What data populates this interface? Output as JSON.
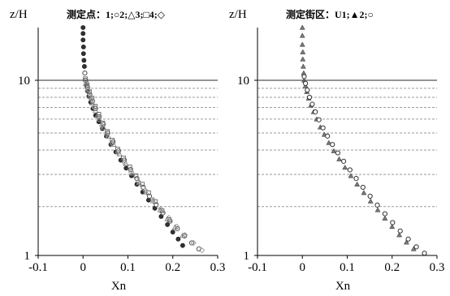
{
  "chart_data": [
    {
      "type": "scatter",
      "ylabel": "z/H",
      "xlabel": "Xn",
      "legend_text": "测定点：1;○2;△3;□4;◇",
      "y_scale": "log",
      "xlim": [
        -0.1,
        0.3
      ],
      "ylim": [
        1,
        20
      ],
      "xticks": [
        "-0.1",
        "0",
        "0.1",
        "0.2",
        "0.3"
      ],
      "yticks": [
        {
          "value": 10,
          "label": "10"
        },
        {
          "value": 1,
          "label": "1"
        }
      ],
      "grid_y": [
        1.9,
        2.9,
        4.0,
        5.0,
        6.0,
        7.0,
        8.0,
        9.0
      ],
      "series": [
        {
          "marker": "circle-filled",
          "color": "#333333",
          "points": [
            [
              0.0,
              20
            ],
            [
              0.0,
              18.5
            ],
            [
              0.0,
              17
            ],
            [
              0.001,
              15.5
            ],
            [
              0.001,
              14.2
            ],
            [
              0.002,
              13
            ],
            [
              0.003,
              12
            ],
            [
              0.004,
              11
            ],
            [
              0.005,
              10
            ],
            [
              0.008,
              9.3
            ],
            [
              0.01,
              8.7
            ],
            [
              0.013,
              8.1
            ],
            [
              0.017,
              7.5
            ],
            [
              0.022,
              6.9
            ],
            [
              0.028,
              6.3
            ],
            [
              0.035,
              5.8
            ],
            [
              0.043,
              5.3
            ],
            [
              0.052,
              4.8
            ],
            [
              0.062,
              4.3
            ],
            [
              0.073,
              3.9
            ],
            [
              0.084,
              3.5
            ],
            [
              0.096,
              3.15
            ],
            [
              0.108,
              2.85
            ],
            [
              0.12,
              2.55
            ],
            [
              0.133,
              2.3
            ],
            [
              0.146,
              2.07
            ],
            [
              0.16,
              1.86
            ],
            [
              0.174,
              1.67
            ],
            [
              0.188,
              1.5
            ],
            [
              0.2,
              1.36
            ],
            [
              0.212,
              1.24
            ],
            [
              0.222,
              1.14
            ]
          ]
        },
        {
          "marker": "circle-open",
          "color": "#555555",
          "points": [
            [
              0.004,
              11
            ],
            [
              0.006,
              10
            ],
            [
              0.01,
              9.1
            ],
            [
              0.015,
              8.3
            ],
            [
              0.021,
              7.6
            ],
            [
              0.028,
              6.9
            ],
            [
              0.036,
              6.2
            ],
            [
              0.045,
              5.6
            ],
            [
              0.055,
              5.0
            ],
            [
              0.067,
              4.45
            ],
            [
              0.079,
              3.95
            ],
            [
              0.092,
              3.5
            ],
            [
              0.106,
              3.1
            ],
            [
              0.12,
              2.75
            ],
            [
              0.134,
              2.45
            ],
            [
              0.148,
              2.18
            ],
            [
              0.163,
              1.95
            ],
            [
              0.178,
              1.75
            ],
            [
              0.194,
              1.57
            ],
            [
              0.21,
              1.42
            ],
            [
              0.226,
              1.29
            ],
            [
              0.242,
              1.18
            ],
            [
              0.258,
              1.09
            ]
          ]
        },
        {
          "marker": "triangle",
          "color": "#888888",
          "points": [
            [
              0.006,
              9.6
            ],
            [
              0.01,
              8.9
            ],
            [
              0.015,
              8.1
            ],
            [
              0.021,
              7.4
            ],
            [
              0.028,
              6.7
            ],
            [
              0.036,
              6.0
            ],
            [
              0.045,
              5.4
            ],
            [
              0.056,
              4.8
            ],
            [
              0.068,
              4.3
            ],
            [
              0.081,
              3.8
            ],
            [
              0.095,
              3.35
            ],
            [
              0.11,
              2.95
            ],
            [
              0.125,
              2.6
            ],
            [
              0.14,
              2.3
            ],
            [
              0.156,
              2.05
            ],
            [
              0.172,
              1.82
            ],
            [
              0.188,
              1.62
            ],
            [
              0.205,
              1.45
            ],
            [
              0.222,
              1.3
            ]
          ]
        },
        {
          "marker": "square",
          "color": "#666666",
          "points": [
            [
              0.005,
              10.2
            ],
            [
              0.009,
              9.4
            ],
            [
              0.014,
              8.6
            ],
            [
              0.02,
              7.9
            ],
            [
              0.027,
              7.1
            ],
            [
              0.035,
              6.4
            ],
            [
              0.044,
              5.7
            ],
            [
              0.054,
              5.1
            ],
            [
              0.065,
              4.55
            ],
            [
              0.077,
              4.05
            ],
            [
              0.09,
              3.6
            ],
            [
              0.104,
              3.2
            ],
            [
              0.118,
              2.85
            ],
            [
              0.132,
              2.55
            ],
            [
              0.146,
              2.28
            ],
            [
              0.161,
              2.03
            ],
            [
              0.176,
              1.8
            ],
            [
              0.192,
              1.6
            ]
          ]
        },
        {
          "marker": "diamond",
          "color": "#999999",
          "points": [
            [
              0.007,
              9.8
            ],
            [
              0.012,
              8.8
            ],
            [
              0.018,
              7.8
            ],
            [
              0.025,
              7.0
            ],
            [
              0.033,
              6.2
            ],
            [
              0.042,
              5.5
            ],
            [
              0.053,
              4.9
            ],
            [
              0.065,
              4.35
            ],
            [
              0.078,
              3.85
            ],
            [
              0.092,
              3.4
            ],
            [
              0.107,
              3.0
            ],
            [
              0.123,
              2.65
            ],
            [
              0.139,
              2.35
            ],
            [
              0.156,
              2.08
            ],
            [
              0.173,
              1.85
            ],
            [
              0.191,
              1.64
            ],
            [
              0.209,
              1.46
            ],
            [
              0.227,
              1.31
            ],
            [
              0.246,
              1.18
            ],
            [
              0.265,
              1.07
            ]
          ]
        }
      ]
    },
    {
      "type": "scatter",
      "ylabel": "z/H",
      "xlabel": "Xn",
      "legend_text": "测定街区：U1;▲2;○",
      "y_scale": "log",
      "xlim": [
        -0.1,
        0.3
      ],
      "ylim": [
        1,
        20
      ],
      "xticks": [
        "-0.1",
        "0",
        "0.1",
        "0.2",
        "0.3"
      ],
      "yticks": [
        {
          "value": 10,
          "label": "10"
        },
        {
          "value": 1,
          "label": "1"
        }
      ],
      "grid_y": [
        1.9,
        2.9,
        4.0,
        5.0,
        6.0,
        7.0,
        8.0,
        9.0
      ],
      "series": [
        {
          "marker": "triangle-filled",
          "color": "#777777",
          "points": [
            [
              0.0,
              20
            ],
            [
              0.0,
              18
            ],
            [
              0.0,
              16
            ],
            [
              0.001,
              14.5
            ],
            [
              0.001,
              13.2
            ],
            [
              0.002,
              12
            ],
            [
              0.003,
              11
            ],
            [
              0.004,
              10
            ],
            [
              0.007,
              9.3
            ],
            [
              0.01,
              8.6
            ],
            [
              0.014,
              7.9
            ],
            [
              0.019,
              7.2
            ],
            [
              0.025,
              6.6
            ],
            [
              0.032,
              6.0
            ],
            [
              0.04,
              5.4
            ],
            [
              0.049,
              4.9
            ],
            [
              0.059,
              4.4
            ],
            [
              0.07,
              3.95
            ],
            [
              0.082,
              3.55
            ],
            [
              0.095,
              3.18
            ],
            [
              0.108,
              2.85
            ],
            [
              0.122,
              2.55
            ],
            [
              0.137,
              2.28
            ],
            [
              0.152,
              2.04
            ],
            [
              0.168,
              1.82
            ],
            [
              0.184,
              1.63
            ],
            [
              0.2,
              1.46
            ],
            [
              0.216,
              1.31
            ],
            [
              0.232,
              1.19
            ],
            [
              0.248,
              1.09
            ]
          ]
        },
        {
          "marker": "circle-open",
          "color": "#333333",
          "points": [
            [
              0.004,
              10.5
            ],
            [
              0.007,
              9.6
            ],
            [
              0.011,
              8.8
            ],
            [
              0.016,
              8.0
            ],
            [
              0.022,
              7.3
            ],
            [
              0.029,
              6.6
            ],
            [
              0.037,
              5.95
            ],
            [
              0.046,
              5.35
            ],
            [
              0.056,
              4.8
            ],
            [
              0.067,
              4.3
            ],
            [
              0.079,
              3.85
            ],
            [
              0.092,
              3.45
            ],
            [
              0.106,
              3.08
            ],
            [
              0.12,
              2.75
            ],
            [
              0.135,
              2.45
            ],
            [
              0.151,
              2.18
            ],
            [
              0.167,
              1.94
            ],
            [
              0.184,
              1.73
            ],
            [
              0.201,
              1.54
            ],
            [
              0.218,
              1.38
            ],
            [
              0.236,
              1.24
            ],
            [
              0.254,
              1.12
            ],
            [
              0.272,
              1.03
            ]
          ]
        }
      ]
    }
  ]
}
